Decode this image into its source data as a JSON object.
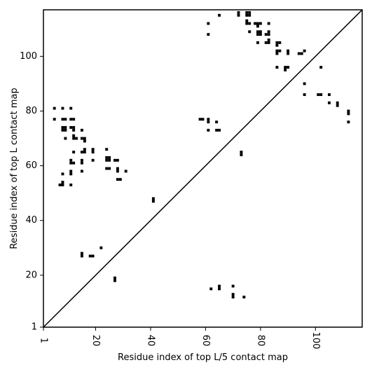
{
  "chart_data": {
    "type": "scatter",
    "title": "",
    "xlabel": "Residue index of top L/5 contact map",
    "ylabel": "Residue index of top L contact map",
    "xlim": [
      1,
      117
    ],
    "ylim": [
      1,
      117
    ],
    "xticks": [
      1,
      20,
      40,
      60,
      80,
      100
    ],
    "yticks": [
      1,
      20,
      40,
      60,
      80,
      100
    ],
    "xtick_rotation": 90,
    "grid": false,
    "legend": "none",
    "marker": "square",
    "marker_color": "#000000",
    "diagonal": {
      "from": [
        1,
        1
      ],
      "to": [
        117,
        117
      ],
      "color": "#000000"
    },
    "series": [
      {
        "points": [
          [
            5,
            81
          ],
          [
            5,
            77
          ],
          [
            8,
            81
          ],
          [
            11,
            81
          ],
          [
            8,
            77
          ],
          [
            9,
            77
          ],
          [
            11,
            77
          ],
          [
            12,
            77
          ],
          [
            8,
            74
          ],
          [
            9,
            74
          ],
          [
            8,
            73
          ],
          [
            9,
            73
          ],
          [
            11,
            74
          ],
          [
            12,
            74
          ],
          [
            12,
            73
          ],
          [
            15,
            73
          ],
          [
            12,
            71
          ],
          [
            12,
            70
          ],
          [
            13,
            70
          ],
          [
            9,
            70
          ],
          [
            15,
            70
          ],
          [
            16,
            70
          ],
          [
            16,
            69
          ],
          [
            12,
            65
          ],
          [
            15,
            65
          ],
          [
            16,
            65
          ],
          [
            16,
            66
          ],
          [
            19,
            66
          ],
          [
            19,
            65
          ],
          [
            24,
            66
          ],
          [
            11,
            62
          ],
          [
            11,
            61
          ],
          [
            12,
            61
          ],
          [
            15,
            62
          ],
          [
            15,
            61
          ],
          [
            19,
            62
          ],
          [
            24,
            63
          ],
          [
            25,
            63
          ],
          [
            24,
            62
          ],
          [
            25,
            62
          ],
          [
            27,
            62
          ],
          [
            28,
            62
          ],
          [
            24,
            59
          ],
          [
            25,
            59
          ],
          [
            28,
            59
          ],
          [
            28,
            58
          ],
          [
            31,
            58
          ],
          [
            15,
            58
          ],
          [
            11,
            58
          ],
          [
            11,
            57
          ],
          [
            8,
            57
          ],
          [
            7,
            53
          ],
          [
            8,
            53
          ],
          [
            8,
            54
          ],
          [
            11,
            53
          ],
          [
            28,
            55
          ],
          [
            29,
            55
          ],
          [
            41,
            48
          ],
          [
            41,
            47
          ],
          [
            22,
            30
          ],
          [
            15,
            28
          ],
          [
            15,
            27
          ],
          [
            18,
            27
          ],
          [
            19,
            27
          ],
          [
            27,
            19
          ],
          [
            27,
            18
          ],
          [
            58,
            77
          ],
          [
            59,
            77
          ],
          [
            61,
            77
          ],
          [
            61,
            76
          ],
          [
            64,
            76
          ],
          [
            61,
            73
          ],
          [
            64,
            73
          ],
          [
            65,
            73
          ],
          [
            61,
            112
          ],
          [
            61,
            108
          ],
          [
            65,
            115
          ],
          [
            72,
            116
          ],
          [
            72,
            115
          ],
          [
            75,
            116
          ],
          [
            76,
            116
          ],
          [
            75,
            115
          ],
          [
            76,
            115
          ],
          [
            75,
            113
          ],
          [
            75,
            112
          ],
          [
            76,
            112
          ],
          [
            78,
            112
          ],
          [
            79,
            112
          ],
          [
            80,
            112
          ],
          [
            83,
            112
          ],
          [
            79,
            111
          ],
          [
            76,
            109
          ],
          [
            79,
            109
          ],
          [
            80,
            109
          ],
          [
            79,
            108
          ],
          [
            80,
            108
          ],
          [
            82,
            108
          ],
          [
            83,
            108
          ],
          [
            83,
            109
          ],
          [
            83,
            106
          ],
          [
            82,
            105
          ],
          [
            83,
            105
          ],
          [
            79,
            105
          ],
          [
            86,
            105
          ],
          [
            87,
            105
          ],
          [
            86,
            104
          ],
          [
            86,
            102
          ],
          [
            87,
            102
          ],
          [
            86,
            101
          ],
          [
            90,
            102
          ],
          [
            90,
            101
          ],
          [
            94,
            101
          ],
          [
            95,
            101
          ],
          [
            96,
            102
          ],
          [
            86,
            96
          ],
          [
            89,
            96
          ],
          [
            90,
            96
          ],
          [
            89,
            95
          ],
          [
            102,
            96
          ],
          [
            96,
            90
          ],
          [
            96,
            86
          ],
          [
            101,
            86
          ],
          [
            102,
            86
          ],
          [
            105,
            86
          ],
          [
            105,
            83
          ],
          [
            108,
            83
          ],
          [
            108,
            82
          ],
          [
            112,
            80
          ],
          [
            112,
            79
          ],
          [
            112,
            76
          ],
          [
            73,
            65
          ],
          [
            73,
            64
          ],
          [
            62,
            15
          ],
          [
            65,
            16
          ],
          [
            65,
            15
          ],
          [
            70,
            16
          ],
          [
            70,
            13
          ],
          [
            70,
            12
          ],
          [
            74,
            12
          ]
        ]
      }
    ]
  }
}
